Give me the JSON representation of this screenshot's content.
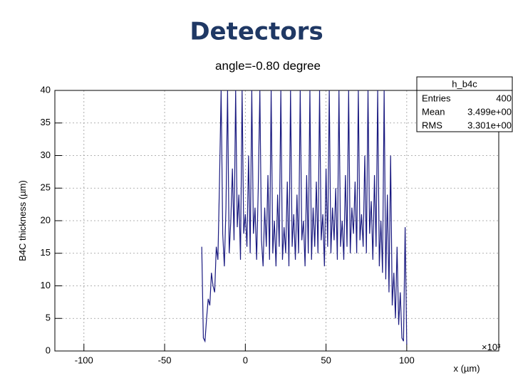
{
  "slide_title": "Detectors",
  "chart_data": {
    "type": "line",
    "title": "angle=-0.80 degree",
    "xlabel": "x (µm)",
    "ylabel": "B4C thickness (µm)",
    "x_multiplier": "×10³",
    "x": [
      -27,
      -26,
      -25,
      -24,
      -23,
      -22,
      -21,
      -20,
      -19,
      -18,
      -17,
      -16,
      -15,
      -14,
      -13,
      -12,
      -11,
      -10,
      -9,
      -8,
      -7,
      -6,
      -5,
      -4,
      -3,
      -2,
      -1,
      0,
      1,
      2,
      3,
      4,
      5,
      6,
      7,
      8,
      9,
      10,
      11,
      12,
      13,
      14,
      15,
      16,
      17,
      18,
      19,
      20,
      21,
      22,
      23,
      24,
      25,
      26,
      27,
      28,
      29,
      30,
      31,
      32,
      33,
      34,
      35,
      36,
      37,
      38,
      39,
      40,
      41,
      42,
      43,
      44,
      45,
      46,
      47,
      48,
      49,
      50,
      51,
      52,
      53,
      54,
      55,
      56,
      57,
      58,
      59,
      60,
      61,
      62,
      63,
      64,
      65,
      66,
      67,
      68,
      69,
      70,
      71,
      72,
      73,
      74,
      75,
      76,
      77,
      78,
      79,
      80,
      81,
      82,
      83,
      84,
      85,
      86,
      87,
      88,
      89,
      90,
      91,
      92,
      93,
      94,
      95,
      96,
      97,
      98,
      99,
      100
    ],
    "series": [
      {
        "name": "h_b4c",
        "color": "#1a1a80",
        "values": [
          16,
          2,
          1.5,
          5,
          8,
          7,
          12,
          10,
          9,
          16,
          14,
          26,
          40,
          18,
          13,
          22,
          40,
          15,
          20,
          28,
          17,
          40,
          19,
          24,
          14,
          40,
          18,
          21,
          16,
          30,
          15,
          40,
          18,
          22,
          14,
          25,
          40,
          17,
          13,
          22,
          16,
          27,
          14,
          40,
          15,
          20,
          13,
          24,
          16,
          40,
          14,
          19,
          15,
          26,
          13,
          40,
          16,
          21,
          14,
          24,
          15,
          40,
          17,
          20,
          13,
          27,
          15,
          40,
          14,
          22,
          16,
          26,
          15,
          40,
          17,
          21,
          13,
          28,
          16,
          40,
          15,
          22,
          17,
          25,
          14,
          40,
          16,
          20,
          14,
          27,
          16,
          40,
          15,
          22,
          18,
          26,
          15,
          40,
          17,
          21,
          16,
          30,
          15,
          40,
          18,
          23,
          14,
          27,
          16,
          40,
          13,
          20,
          12,
          40,
          11,
          24,
          9,
          30,
          7,
          12,
          5,
          16,
          4,
          9,
          2,
          1.5,
          19,
          1
        ]
      }
    ],
    "xlim": [
      -118,
      157
    ],
    "ylim": [
      0,
      40
    ],
    "xticks": [
      -100,
      -50,
      0,
      50,
      100
    ],
    "yticks": [
      0,
      5,
      10,
      15,
      20,
      25,
      30,
      35,
      40
    ],
    "grid": true,
    "stats": {
      "title": "h_b4c",
      "rows": [
        {
          "label": "Entries",
          "value": "400"
        },
        {
          "label": "Mean",
          "value": "3.499e+00"
        },
        {
          "label": "RMS",
          "value": "3.301e+00"
        }
      ]
    }
  }
}
